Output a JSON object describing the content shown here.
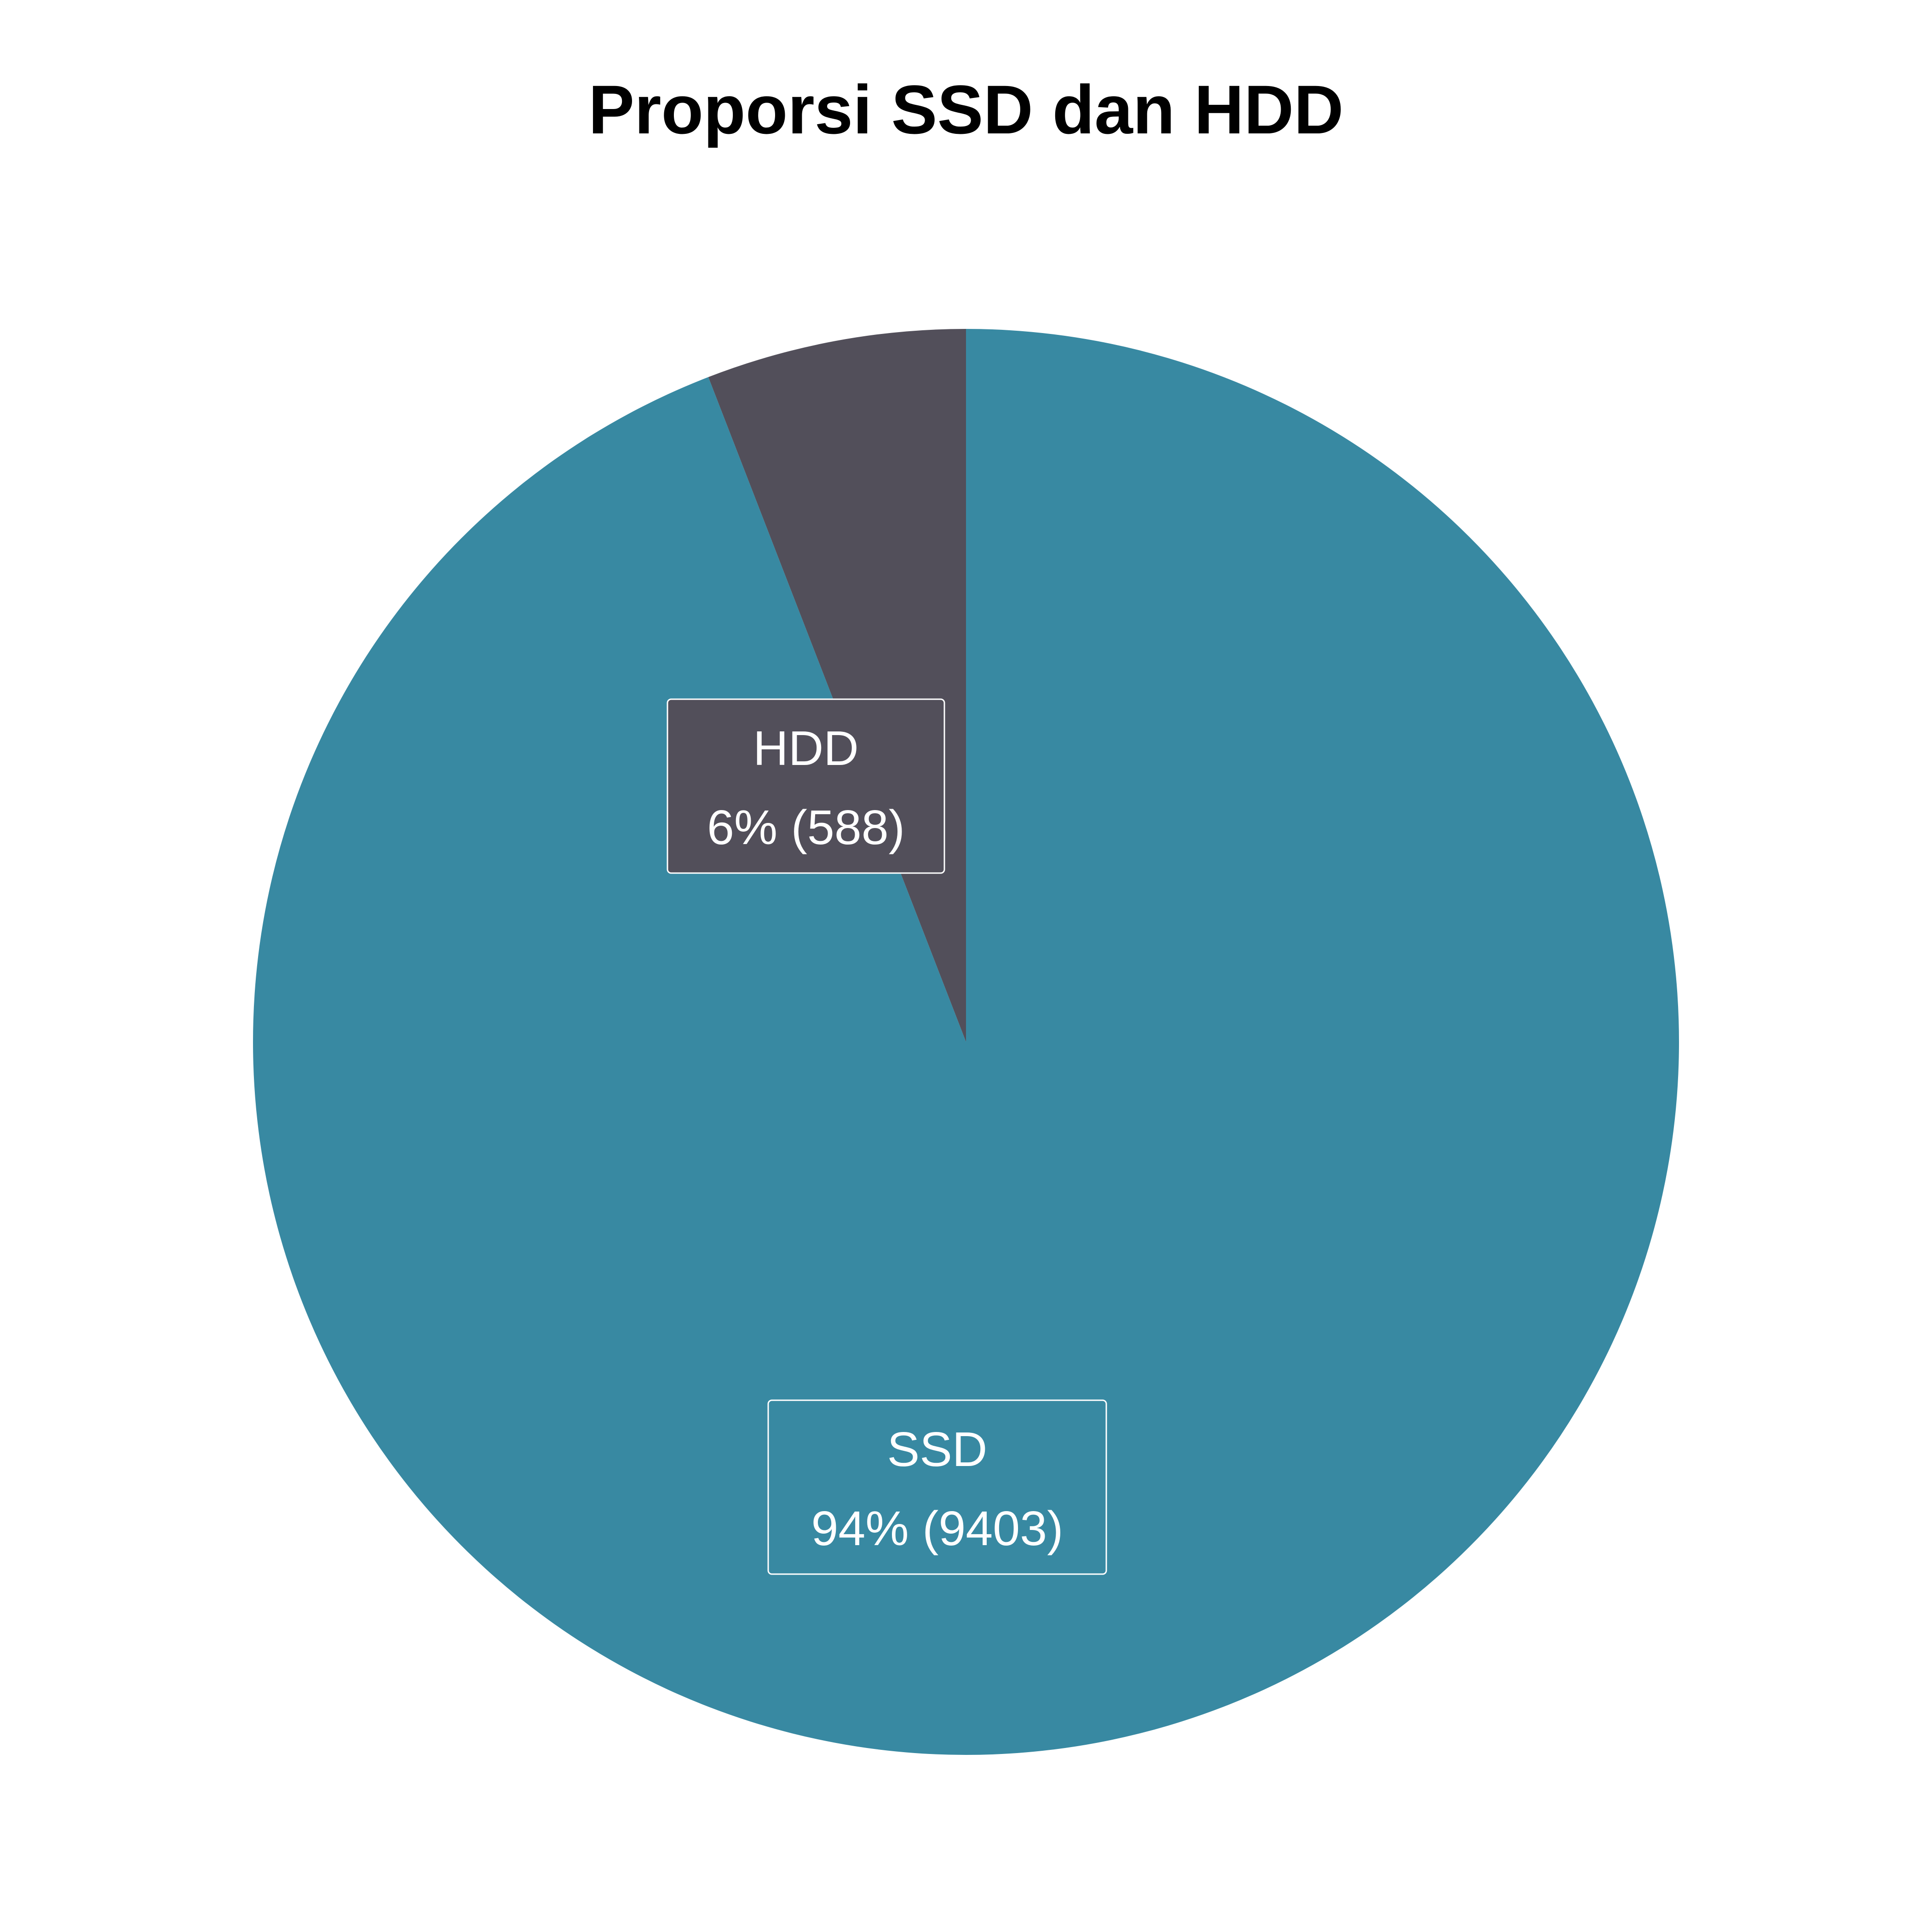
{
  "chart_data": {
    "type": "pie",
    "title": "Proporsi SSD dan HDD",
    "start_angle": "top",
    "direction": "counterclockwise",
    "slices": [
      {
        "name": "HDD",
        "value": 588,
        "percent_label": "6% (588)",
        "color": "#524F5A"
      },
      {
        "name": "SSD",
        "value": 9403,
        "percent_label": "94% (9403)",
        "color": "#3889A2"
      }
    ]
  }
}
